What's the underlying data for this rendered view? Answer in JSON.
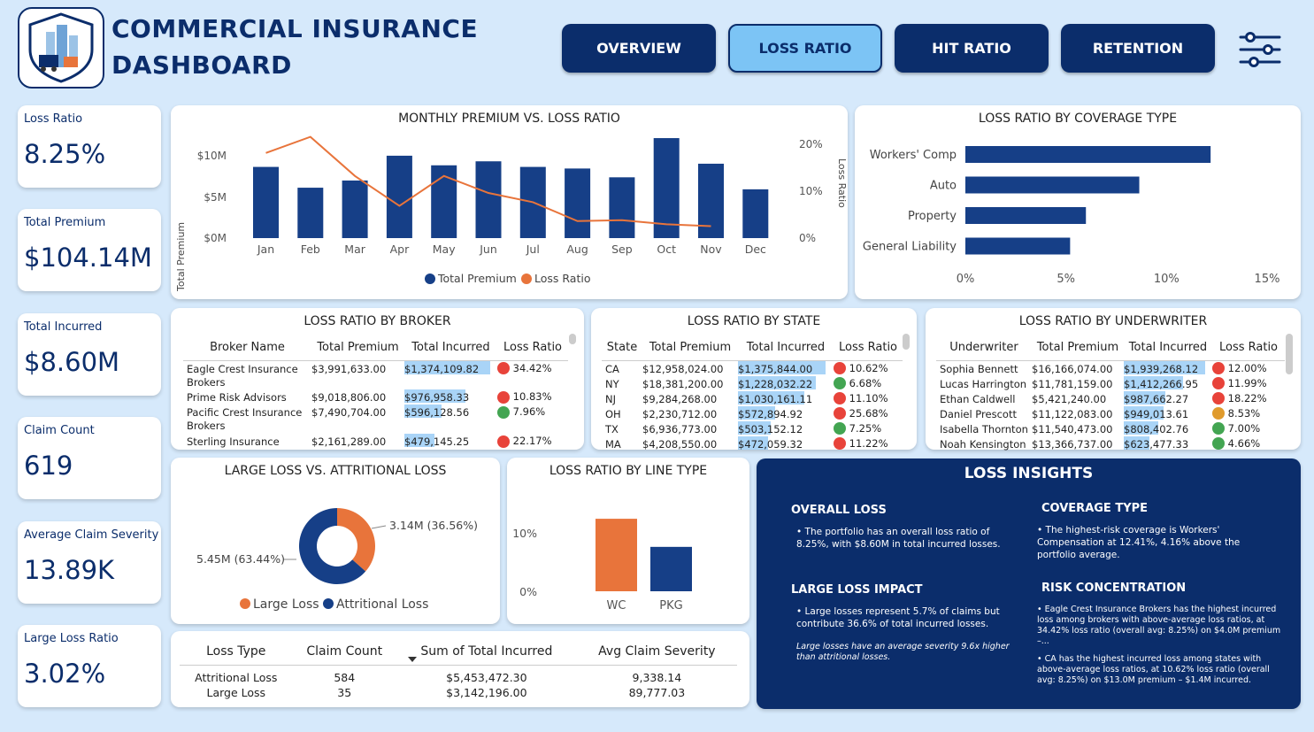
{
  "header": {
    "title_line1": "COMMERCIAL INSURANCE",
    "title_line2": "DASHBOARD"
  },
  "nav": [
    {
      "label": "OVERVIEW",
      "active": false
    },
    {
      "label": "LOSS RATIO",
      "active": true
    },
    {
      "label": "HIT RATIO",
      "active": false
    },
    {
      "label": "RETENTION",
      "active": false
    }
  ],
  "kpis": [
    {
      "label": "Loss Ratio",
      "value": "8.25%"
    },
    {
      "label": "Total Premium",
      "value": "$104.14M"
    },
    {
      "label": "Total Incurred",
      "value": "$8.60M"
    },
    {
      "label": "Claim Count",
      "value": "619"
    },
    {
      "label": "Average Claim Severity",
      "value": "13.89K"
    },
    {
      "label": "Large Loss Ratio",
      "value": "3.02%"
    }
  ],
  "monthly": {
    "title": "MONTHLY PREMIUM VS. LOSS RATIO",
    "ylabel_left": "Total Premium",
    "ylabel_right": "Loss Ratio",
    "left_ticks": [
      "$10M",
      "$5M",
      "$0M"
    ],
    "right_ticks": [
      "20%",
      "10%",
      "0%"
    ],
    "legend": [
      "Total Premium",
      "Loss Ratio"
    ]
  },
  "chart_data": [
    {
      "type": "bar",
      "title": "MONTHLY PREMIUM VS. LOSS RATIO",
      "categories": [
        "Jan",
        "Feb",
        "Mar",
        "Apr",
        "May",
        "Jun",
        "Jul",
        "Aug",
        "Sep",
        "Oct",
        "Nov",
        "Dec"
      ],
      "series": [
        {
          "name": "Total Premium",
          "values": [
            8.9,
            6.3,
            7.2,
            10.3,
            9.1,
            9.6,
            8.9,
            8.7,
            7.6,
            12.5,
            9.3,
            6.1
          ]
        },
        {
          "name": "Loss Ratio",
          "type": "line",
          "values": [
            18.5,
            22.0,
            13.5,
            7.0,
            13.5,
            9.8,
            7.8,
            3.7,
            3.9,
            3.0,
            2.6,
            null
          ]
        }
      ],
      "ylabel": "Total Premium",
      "ylabel_right": "Loss Ratio",
      "ylim": [
        0,
        13.5
      ],
      "ylim_right": [
        0,
        25
      ],
      "legend": "bottom"
    },
    {
      "type": "bar",
      "orientation": "horizontal",
      "title": "LOSS RATIO BY COVERAGE TYPE",
      "categories": [
        "Workers' Comp",
        "Auto",
        "Property",
        "General Liability"
      ],
      "values": [
        12.41,
        8.8,
        6.1,
        5.3
      ],
      "xlim": [
        0,
        15
      ],
      "x_ticks": [
        "0%",
        "5%",
        "10%",
        "15%"
      ]
    },
    {
      "type": "pie",
      "title": "LARGE LOSS VS. ATTRITIONAL LOSS",
      "categories": [
        "Large Loss",
        "Attritional Loss"
      ],
      "values": [
        36.56,
        63.44
      ],
      "labels": [
        "3.14M (36.56%)",
        "5.45M (63.44%)"
      ],
      "legend": "bottom"
    },
    {
      "type": "bar",
      "title": "LOSS RATIO BY LINE TYPE",
      "categories": [
        "WC",
        "PKG"
      ],
      "values": [
        12.41,
        7.6
      ],
      "y_ticks": [
        "10%",
        "0%"
      ],
      "ylim": [
        0,
        13
      ]
    }
  ],
  "coverage": {
    "title": "LOSS RATIO BY COVERAGE TYPE"
  },
  "broker": {
    "title": "LOSS RATIO BY BROKER",
    "headers": [
      "Broker Name",
      "Total Premium",
      "Total Incurred",
      "Loss Ratio"
    ],
    "rows": [
      {
        "name": "Eagle Crest Insurance Brokers",
        "premium": "$3,991,633.00",
        "incurred": "$1,374,109.82",
        "ratio": "34.42%",
        "dot": "red",
        "bar": 1.0
      },
      {
        "name": "Prime Risk Advisors",
        "premium": "$9,018,806.00",
        "incurred": "$976,958.33",
        "ratio": "10.83%",
        "dot": "red",
        "bar": 0.71
      },
      {
        "name": "Pacific Crest Insurance Brokers",
        "premium": "$7,490,704.00",
        "incurred": "$596,128.56",
        "ratio": "7.96%",
        "dot": "green",
        "bar": 0.43
      },
      {
        "name": "Sterling Insurance",
        "premium": "$2,161,289.00",
        "incurred": "$479,145.25",
        "ratio": "22.17%",
        "dot": "red",
        "bar": 0.35
      }
    ]
  },
  "state": {
    "title": "LOSS RATIO BY STATE",
    "headers": [
      "State",
      "Total Premium",
      "Total Incurred",
      "Loss Ratio"
    ],
    "rows": [
      {
        "name": "CA",
        "premium": "$12,958,024.00",
        "incurred": "$1,375,844.00",
        "ratio": "10.62%",
        "dot": "red",
        "bar": 1.0
      },
      {
        "name": "NY",
        "premium": "$18,381,200.00",
        "incurred": "$1,228,032.22",
        "ratio": "6.68%",
        "dot": "green",
        "bar": 0.89
      },
      {
        "name": "NJ",
        "premium": "$9,284,268.00",
        "incurred": "$1,030,161.11",
        "ratio": "11.10%",
        "dot": "red",
        "bar": 0.75
      },
      {
        "name": "OH",
        "premium": "$2,230,712.00",
        "incurred": "$572,894.92",
        "ratio": "25.68%",
        "dot": "red",
        "bar": 0.42
      },
      {
        "name": "TX",
        "premium": "$6,936,773.00",
        "incurred": "$503,152.12",
        "ratio": "7.25%",
        "dot": "green",
        "bar": 0.37
      },
      {
        "name": "MA",
        "premium": "$4,208,550.00",
        "incurred": "$472,059.32",
        "ratio": "11.22%",
        "dot": "red",
        "bar": 0.34
      }
    ]
  },
  "underwriter": {
    "title": "LOSS RATIO BY UNDERWRITER",
    "headers": [
      "Underwriter",
      "Total Premium",
      "Total Incurred",
      "Loss Ratio"
    ],
    "rows": [
      {
        "name": "Sophia Bennett",
        "premium": "$16,166,074.00",
        "incurred": "$1,939,268.12",
        "ratio": "12.00%",
        "dot": "red",
        "bar": 1.0
      },
      {
        "name": "Lucas Harrington",
        "premium": "$11,781,159.00",
        "incurred": "$1,412,266.95",
        "ratio": "11.99%",
        "dot": "red",
        "bar": 0.73
      },
      {
        "name": "Ethan Caldwell",
        "premium": "$5,421,240.00",
        "incurred": "$987,662.27",
        "ratio": "18.22%",
        "dot": "red",
        "bar": 0.51
      },
      {
        "name": "Daniel Prescott",
        "premium": "$11,122,083.00",
        "incurred": "$949,013.61",
        "ratio": "8.53%",
        "dot": "orange",
        "bar": 0.49
      },
      {
        "name": "Isabella Thornton",
        "premium": "$11,540,473.00",
        "incurred": "$808,402.76",
        "ratio": "7.00%",
        "dot": "green",
        "bar": 0.42
      },
      {
        "name": "Noah Kensington",
        "premium": "$13,366,737.00",
        "incurred": "$623,477.33",
        "ratio": "4.66%",
        "dot": "green",
        "bar": 0.32
      }
    ]
  },
  "largeloss": {
    "title": "LARGE LOSS VS. ATTRITIONAL LOSS",
    "label_large": "3.14M (36.56%)",
    "label_attr": "5.45M (63.44%)",
    "legend_large": "Large Loss",
    "legend_attr": "Attritional Loss"
  },
  "linetype": {
    "title": "LOSS RATIO BY LINE TYPE"
  },
  "losstable": {
    "headers": [
      "Loss Type",
      "Claim Count",
      "Sum of Total Incurred",
      "Avg Claim Severity"
    ],
    "rows": [
      {
        "type": "Attritional Loss",
        "count": "584",
        "sum": "$5,453,472.30",
        "avg": "9,338.14"
      },
      {
        "type": "Large Loss",
        "count": "35",
        "sum": "$3,142,196.00",
        "avg": "89,777.03"
      }
    ]
  },
  "insights": {
    "title": "LOSS INSIGHTS",
    "overall_h": "OVERALL LOSS",
    "overall_t": "• The portfolio has an overall loss ratio of 8.25%, with $8.60M in total incurred losses.",
    "coverage_h": "COVERAGE TYPE",
    "coverage_t": "• The highest-risk coverage is Workers' Compensation at 12.41%, 4.16% above the portfolio average.",
    "large_h": "LARGE LOSS IMPACT",
    "large_t": "• Large losses represent 5.7% of claims but contribute 36.6% of total incurred losses.",
    "large_note": "Large losses have an average severity 9.6x higher than attritional losses.",
    "risk_h": "RISK CONCENTRATION",
    "risk_t1": "• Eagle Crest Insurance Brokers has the highest incurred loss among brokers with above-average loss ratios, at 34.42% loss ratio (overall avg: 8.25%) on $4.0M premium –...",
    "risk_t2": "• CA has the highest incurred loss among states with above-average loss ratios, at 10.62% loss ratio (overall avg: 8.25%) on $13.0M premium – $1.4M incurred."
  },
  "colors": {
    "navy": "#0b2d6b",
    "bar": "#163f87",
    "orange": "#e8743b",
    "active": "#7cc4f5",
    "highlight": "#a9d4f7"
  }
}
